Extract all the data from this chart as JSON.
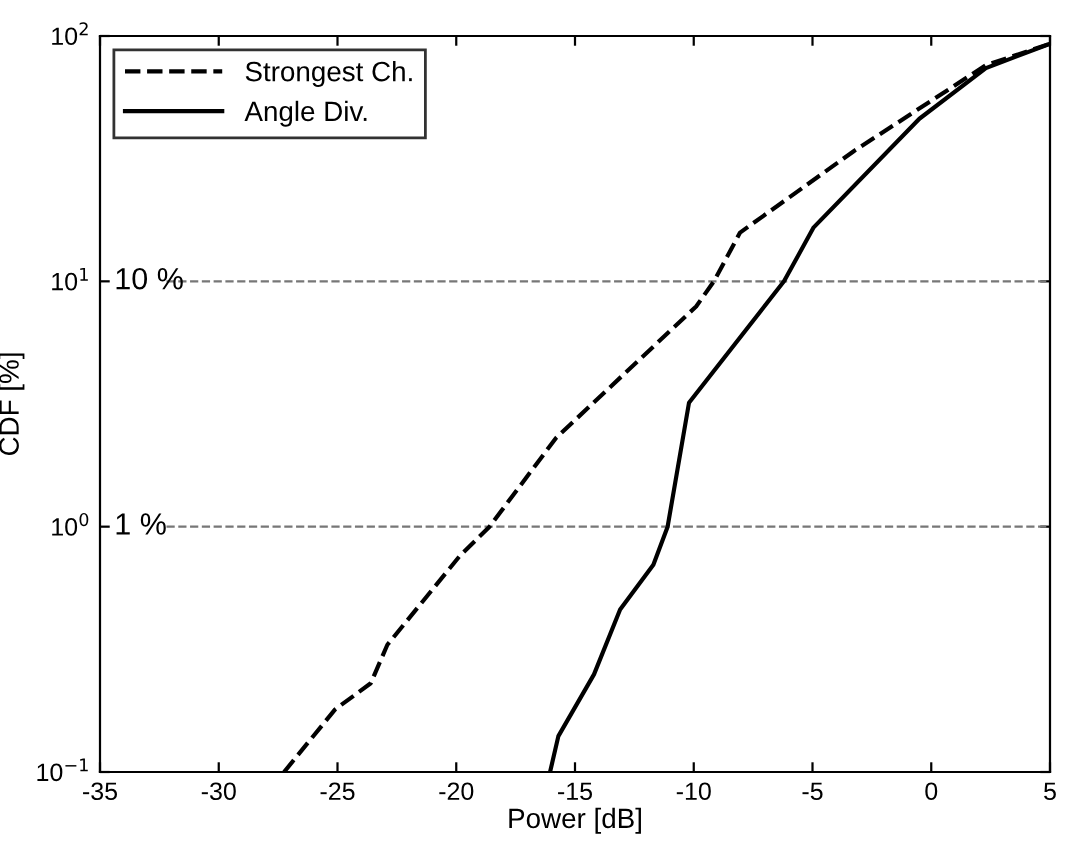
{
  "chart_data": {
    "type": "line",
    "xlabel": "Power [dB]",
    "ylabel": "CDF [%]",
    "log": "y",
    "xlim": [
      -35,
      5
    ],
    "xticks": [
      -35,
      -30,
      -25,
      -20,
      -15,
      -10,
      -5,
      0,
      5
    ],
    "ylim": [
      0.1,
      100
    ],
    "yticks": [
      {
        "value": 0.1,
        "label": "10$^{−1}$"
      },
      {
        "value": 1,
        "label": "10$^{0}$"
      },
      {
        "value": 10,
        "label": "10$^{1}$"
      },
      {
        "value": 100,
        "label": "10$^{2}$"
      }
    ],
    "legend": "top left",
    "grid": false,
    "series": [
      {
        "name": "Strongest Ch.",
        "color": "#000000",
        "line_style": "dashed",
        "x": [
          -27.25,
          -25.1,
          -23.6,
          -22.9,
          -19.85,
          -18.6,
          -15.8,
          -9.9,
          -9.15,
          -8.05,
          -3.25,
          2.3,
          5
        ],
        "values": [
          0.1,
          0.18,
          0.23,
          0.33,
          0.76,
          1.0,
          2.3,
          7.9,
          10,
          15.8,
          34,
          76,
          93
        ]
      },
      {
        "name": "Angle Div.",
        "color": "#000000",
        "line_style": "solid",
        "x": [
          -16.05,
          -15.7,
          -14.2,
          -13.1,
          -11.7,
          -11.1,
          -10.2,
          -6.2,
          -4.95,
          -0.5,
          2.3,
          5
        ],
        "values": [
          0.1,
          0.14,
          0.25,
          0.46,
          0.7,
          1.0,
          3.2,
          10,
          16.6,
          46,
          74,
          93
        ]
      }
    ],
    "ref_lines": [
      {
        "axis": "y",
        "value": 10,
        "label": "10 %",
        "color": "#777777",
        "line_style": "dashed"
      },
      {
        "axis": "y",
        "value": 1,
        "label": "1 %",
        "color": "#777777",
        "line_style": "dashed"
      }
    ]
  }
}
